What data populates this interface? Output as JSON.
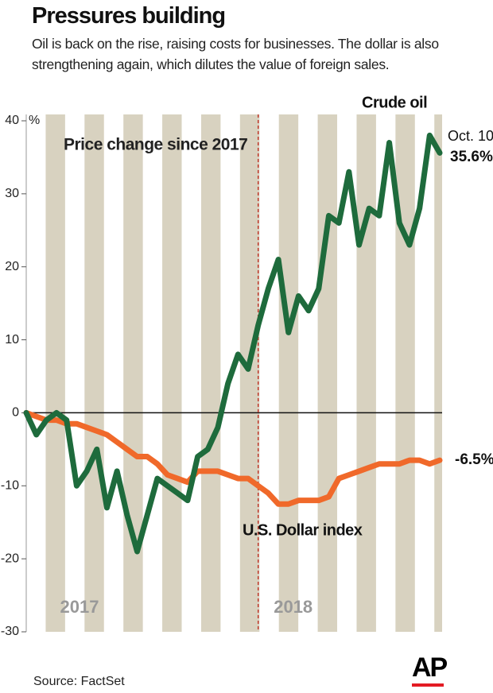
{
  "title": "Pressures building",
  "subtitle": "Oil is back on the rise, raising costs for businesses. The dollar is also strengthening again, which dilutes the value of foreign sales.",
  "source": "Source: FactSet",
  "logo": "AP",
  "chart_data": {
    "type": "line",
    "annotation": "Price change since 2017",
    "y_unit": "%",
    "end_date": "Oct. 10",
    "categories": [
      "2017",
      null,
      null,
      null,
      null,
      null,
      null,
      null,
      null,
      null,
      null,
      null,
      null,
      null,
      null,
      null,
      null,
      null,
      null,
      null,
      null,
      null,
      null,
      "2018",
      null,
      null,
      null,
      null,
      null,
      null,
      null,
      null,
      null,
      null,
      null,
      null,
      null,
      null,
      null,
      null,
      null,
      null
    ],
    "ylim": [
      -30,
      40
    ],
    "yticks": [
      -30,
      -20,
      -10,
      0,
      10,
      20,
      30,
      40
    ],
    "series": [
      {
        "name": "Crude oil",
        "color": "#1e6b3c",
        "end_label": "35.6%",
        "values": [
          0,
          -3,
          -1,
          0,
          -1,
          -10,
          -8,
          -5,
          -13,
          -8,
          -14,
          -19,
          -14,
          -9,
          -10,
          -11,
          -12,
          -6,
          -5,
          -2,
          4,
          8,
          6,
          12,
          17,
          21,
          11,
          16,
          14,
          17,
          27,
          26,
          33,
          23,
          28,
          27,
          37,
          26,
          23,
          28,
          38,
          35.6
        ]
      },
      {
        "name": "U.S. Dollar index",
        "color": "#f0692a",
        "end_label": "-6.5%",
        "values": [
          0,
          -0.5,
          -1,
          -1,
          -1.5,
          -1.5,
          -2,
          -2.5,
          -3,
          -4,
          -5,
          -6,
          -6,
          -7,
          -8.5,
          -9,
          -9.5,
          -8,
          -8,
          -8,
          -8.5,
          -9,
          -9,
          -10,
          -11,
          -12.5,
          -12.5,
          -12,
          -12,
          -12,
          -11.5,
          -9,
          -8.5,
          -8,
          -7.5,
          -7,
          -7,
          -7,
          -6.5,
          -6.5,
          -7,
          -6.5
        ]
      }
    ]
  }
}
